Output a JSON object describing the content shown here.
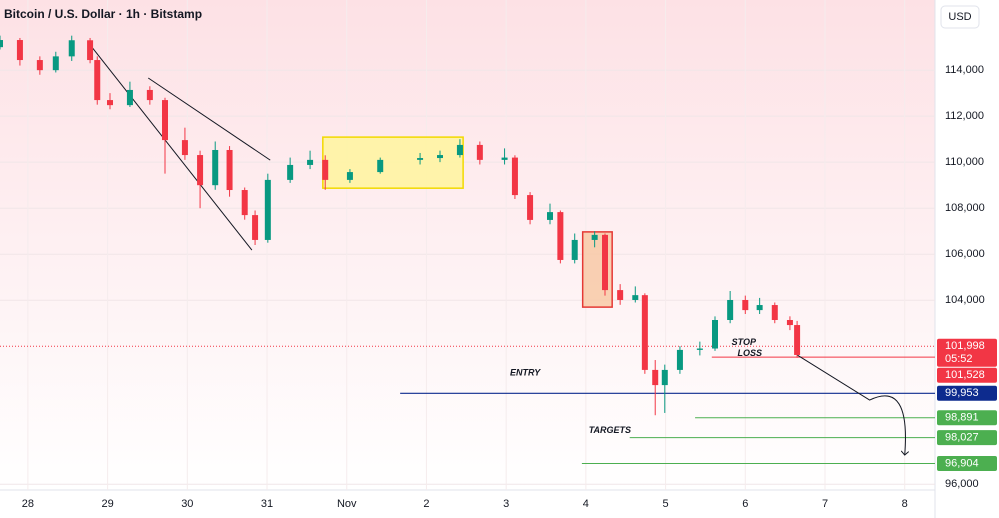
{
  "chart_data": {
    "type": "candlestick",
    "title": "Bitcoin / U.S. Dollar · 1h · Bitstamp",
    "currency": "USD",
    "up_color": "#089981",
    "down_color": "#f23645",
    "xlim": [
      -0.35,
      11.38
    ],
    "xticks": [
      {
        "value": 0,
        "label": "28"
      },
      {
        "value": 1,
        "label": "29"
      },
      {
        "value": 2,
        "label": "30"
      },
      {
        "value": 3,
        "label": "31"
      },
      {
        "value": 4,
        "label": "Nov"
      },
      {
        "value": 5,
        "label": "2"
      },
      {
        "value": 6,
        "label": "3"
      },
      {
        "value": 7,
        "label": "4"
      },
      {
        "value": 8,
        "label": "5"
      },
      {
        "value": 9,
        "label": "6"
      },
      {
        "value": 10,
        "label": "7"
      },
      {
        "value": 11,
        "label": "8"
      }
    ],
    "ylim": [
      95750,
      117050
    ],
    "yticks": [
      {
        "value": 114000,
        "label": "114,000"
      },
      {
        "value": 112000,
        "label": "112,000"
      },
      {
        "value": 110000,
        "label": "110,000"
      },
      {
        "value": 108000,
        "label": "108,000"
      },
      {
        "value": 106000,
        "label": "106,000"
      },
      {
        "value": 104000,
        "label": "104,000"
      },
      {
        "value": 96000,
        "label": "96,000"
      }
    ],
    "candles": [
      [
        -0.35,
        115000,
        115500,
        114900,
        115310
      ],
      [
        -0.1,
        115310,
        115400,
        114200,
        114440
      ],
      [
        0.15,
        114440,
        114600,
        113800,
        114000
      ],
      [
        0.35,
        114000,
        114800,
        113900,
        114600
      ],
      [
        0.55,
        114600,
        115500,
        114400,
        115300
      ],
      [
        0.78,
        115300,
        115400,
        114300,
        114440
      ],
      [
        0.87,
        114440,
        114600,
        112500,
        112700
      ],
      [
        1.03,
        112700,
        113000,
        112300,
        112480
      ],
      [
        1.28,
        112480,
        113500,
        112400,
        113140
      ],
      [
        1.53,
        113140,
        113300,
        112500,
        112700
      ],
      [
        1.72,
        112700,
        112800,
        109500,
        110960
      ],
      [
        1.97,
        110960,
        111500,
        110100,
        110310
      ],
      [
        2.16,
        110310,
        110500,
        108000,
        109000
      ],
      [
        2.35,
        109000,
        110900,
        108800,
        110530
      ],
      [
        2.53,
        110530,
        110700,
        108500,
        108790
      ],
      [
        2.72,
        108790,
        108900,
        107500,
        107700
      ],
      [
        2.85,
        107700,
        107900,
        106400,
        106620
      ],
      [
        3.01,
        106620,
        109500,
        106500,
        109230
      ],
      [
        3.29,
        109230,
        110200,
        109100,
        109880
      ],
      [
        3.54,
        109880,
        110500,
        109700,
        110100
      ],
      [
        3.73,
        110100,
        110300,
        108800,
        109230
      ],
      [
        4.04,
        109230,
        109700,
        109100,
        109570
      ],
      [
        4.42,
        109570,
        110200,
        109500,
        110100
      ],
      [
        4.92,
        110100,
        110400,
        109900,
        110180
      ],
      [
        5.17,
        110180,
        110500,
        110000,
        110310
      ],
      [
        5.42,
        110310,
        111000,
        110200,
        110750
      ],
      [
        5.67,
        110750,
        110900,
        109900,
        110100
      ],
      [
        5.98,
        110100,
        110600,
        109900,
        110200
      ],
      [
        6.11,
        110200,
        110300,
        108400,
        108570
      ],
      [
        6.3,
        108570,
        108700,
        107300,
        107490
      ],
      [
        6.55,
        107490,
        108200,
        107300,
        107830
      ],
      [
        6.68,
        107830,
        107900,
        105600,
        105750
      ],
      [
        6.86,
        105750,
        106900,
        105600,
        106620
      ],
      [
        7.11,
        106620,
        107000,
        106300,
        106840
      ],
      [
        7.24,
        106840,
        106900,
        104200,
        104440
      ],
      [
        7.43,
        104440,
        104700,
        103800,
        104010
      ],
      [
        7.62,
        104010,
        104600,
        103900,
        104220
      ],
      [
        7.74,
        104220,
        104300,
        100800,
        100970
      ],
      [
        7.87,
        100970,
        101400,
        99000,
        100310
      ],
      [
        7.99,
        100310,
        101200,
        99100,
        100970
      ],
      [
        8.18,
        100970,
        102000,
        100800,
        101840
      ],
      [
        8.43,
        101840,
        102200,
        101600,
        101900
      ],
      [
        8.62,
        101900,
        103300,
        101800,
        103140
      ],
      [
        8.81,
        103140,
        104400,
        103000,
        104010
      ],
      [
        9.0,
        104010,
        104200,
        103400,
        103570
      ],
      [
        9.18,
        103570,
        104100,
        103400,
        103790
      ],
      [
        9.37,
        103790,
        103900,
        103000,
        103140
      ],
      [
        9.56,
        103140,
        103300,
        102700,
        102920
      ],
      [
        9.65,
        102920,
        103100,
        101500,
        101620
      ]
    ],
    "boxes": [
      {
        "x": [
          3.7,
          5.46
        ],
        "y": [
          108870,
          111090
        ],
        "fill": "#fff59d",
        "stroke": "#f2d900"
      },
      {
        "x": [
          6.96,
          7.33
        ],
        "y": [
          103700,
          106970
        ],
        "fill": "#f8c9a6",
        "stroke": "#e53935"
      }
    ],
    "trendlines": [
      {
        "x": [
          0.75,
          2.81
        ],
        "y": [
          115230,
          106180
        ]
      },
      {
        "x": [
          1.51,
          3.04
        ],
        "y": [
          113660,
          110090
        ]
      }
    ],
    "projection": {
      "x": [
        9.65,
        10.56,
        11.0
      ],
      "y": [
        101620,
        99660,
        97270
      ]
    },
    "current_price": {
      "value": 101998,
      "label": "101,998",
      "countdown": "05:52",
      "color": "#f23645"
    },
    "stop_loss": {
      "name": "STOP LOSS",
      "value": 101528,
      "label": "101,528",
      "color": "#f23645",
      "from": 8.58
    },
    "entry": {
      "name": "ENTRY",
      "value": 99953,
      "label": "99,953",
      "color": "#0d2b8e",
      "from": 4.67
    },
    "targets": {
      "name": "TARGETS",
      "color": "#4caf50",
      "levels": [
        {
          "value": 98891,
          "label": "98,891",
          "from": 8.37
        },
        {
          "value": 98027,
          "label": "98,027",
          "from": 7.55
        },
        {
          "value": 96904,
          "label": "96,904",
          "from": 6.95
        }
      ]
    }
  }
}
